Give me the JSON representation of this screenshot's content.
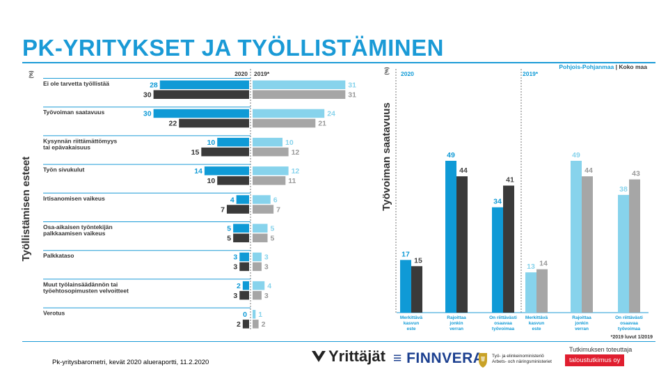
{
  "title": "PK-YRITYKSET JA TYÖLLISTÄMINEN",
  "source": "Pk-yritysbarometri, kevät 2020 alueraportti, 11.2.2020",
  "logos": {
    "yrittajat": "Yrittäjät",
    "finnvera": "FINNVERA",
    "tem_line1": "Työ- ja elinkeinoministeriö",
    "tem_line2": "Arbets- och näringsministeriet",
    "tutkimus_label": "Tutkimuksen toteuttaja",
    "taloustutkimus": "taloustutkimus oy"
  },
  "colors": {
    "accent": "#1a9ad6",
    "region_2020": "#0f9ad6",
    "country_2020": "#3a3a3a",
    "region_2019": "#87d3ec",
    "country_2019": "#a6a6a6"
  },
  "chart_data": [
    {
      "type": "bar",
      "orientation": "horizontal",
      "ylabel": "Työllistämisen esteet",
      "unit": "(%)",
      "column_headers": [
        "2020",
        "2019*"
      ],
      "categories": [
        "Ei ole tarvetta työllistää",
        "Työvoiman saatavuus",
        "Kysynnän riittämättömyys\ntai epävakaisuus",
        "Työn sivukulut",
        "Irtisanomisen vaikeus",
        "Osa-aikaisen työntekijän\npalkkaamisen vaikeus",
        "Palkkataso",
        "Muut työlainsäädännön tai\ntyöehtosopimusten velvoitteet",
        "Verotus"
      ],
      "series": [
        {
          "name": "Pohjois-Pohjanmaa 2020",
          "values": [
            28,
            30,
            10,
            14,
            4,
            5,
            3,
            2,
            0
          ]
        },
        {
          "name": "Koko maa 2020",
          "values": [
            30,
            22,
            15,
            10,
            7,
            5,
            3,
            3,
            2
          ]
        },
        {
          "name": "Pohjois-Pohjanmaa 2019",
          "values": [
            31,
            24,
            10,
            12,
            6,
            5,
            3,
            4,
            1
          ]
        },
        {
          "name": "Koko maa 2019",
          "values": [
            31,
            21,
            12,
            11,
            7,
            5,
            3,
            3,
            2
          ]
        }
      ]
    },
    {
      "type": "bar",
      "ylabel": "Työvoiman saatavuus",
      "unit": "(%)",
      "legend": {
        "region": "Pohjois-Pohjanmaa",
        "separator": "|",
        "country": "Koko maa"
      },
      "footnote": "*2019 luvut 1/2019",
      "groups": [
        {
          "label": "2020",
          "categories": [
            "Merkittävä\nkasvun\neste",
            "Rajoittaa\njonkin\nverran",
            "On riittävästi\nosaavaa\ntyövoimaa"
          ],
          "series": [
            {
              "name": "Pohjois-Pohjanmaa",
              "values": [
                17,
                49,
                34
              ]
            },
            {
              "name": "Koko maa",
              "values": [
                15,
                44,
                41
              ]
            }
          ]
        },
        {
          "label": "2019*",
          "categories": [
            "Merkittävä\nkasvun\neste",
            "Rajoittaa\njonkin\nverran",
            "On riittävästi\nosaavaa\ntyövoimaa"
          ],
          "series": [
            {
              "name": "Pohjois-Pohjanmaa",
              "values": [
                13,
                49,
                38
              ]
            },
            {
              "name": "Koko maa",
              "values": [
                14,
                44,
                43
              ]
            }
          ]
        }
      ]
    }
  ]
}
